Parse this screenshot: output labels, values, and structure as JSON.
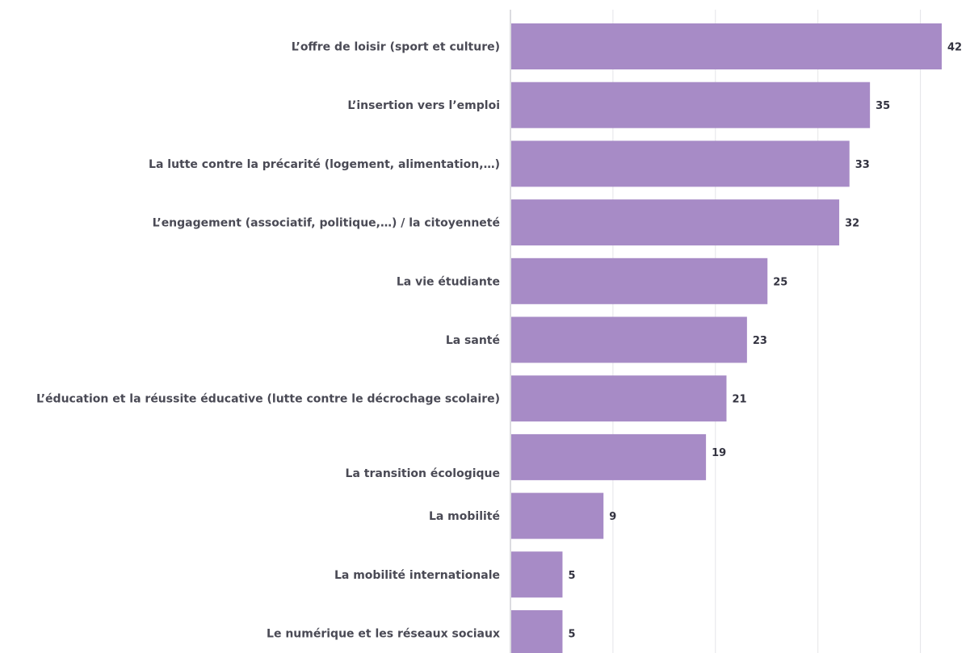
{
  "chart_data": {
    "type": "bar",
    "orientation": "horizontal",
    "categories": [
      "L’offre de loisir (sport et culture)",
      "L’insertion vers l’emploi",
      "La lutte contre la précarité (logement, alimentation,…)",
      "L’engagement (associatif, politique,…) / la citoyenneté",
      "La vie étudiante",
      "La santé",
      "L’éducation et la réussite éducative (lutte contre le décrochage scolaire)",
      "La transition écologique",
      "La mobilité",
      "La mobilité internationale",
      "Le numérique et les réseaux sociaux"
    ],
    "values": [
      42,
      35,
      33,
      32,
      25,
      23,
      21,
      19,
      9,
      5,
      5
    ],
    "xlim": [
      0,
      45
    ],
    "grid": true,
    "bar_color": "#a78bc6",
    "grid_color": "#e4e4e8",
    "axis_color": "#b9b9c2"
  }
}
